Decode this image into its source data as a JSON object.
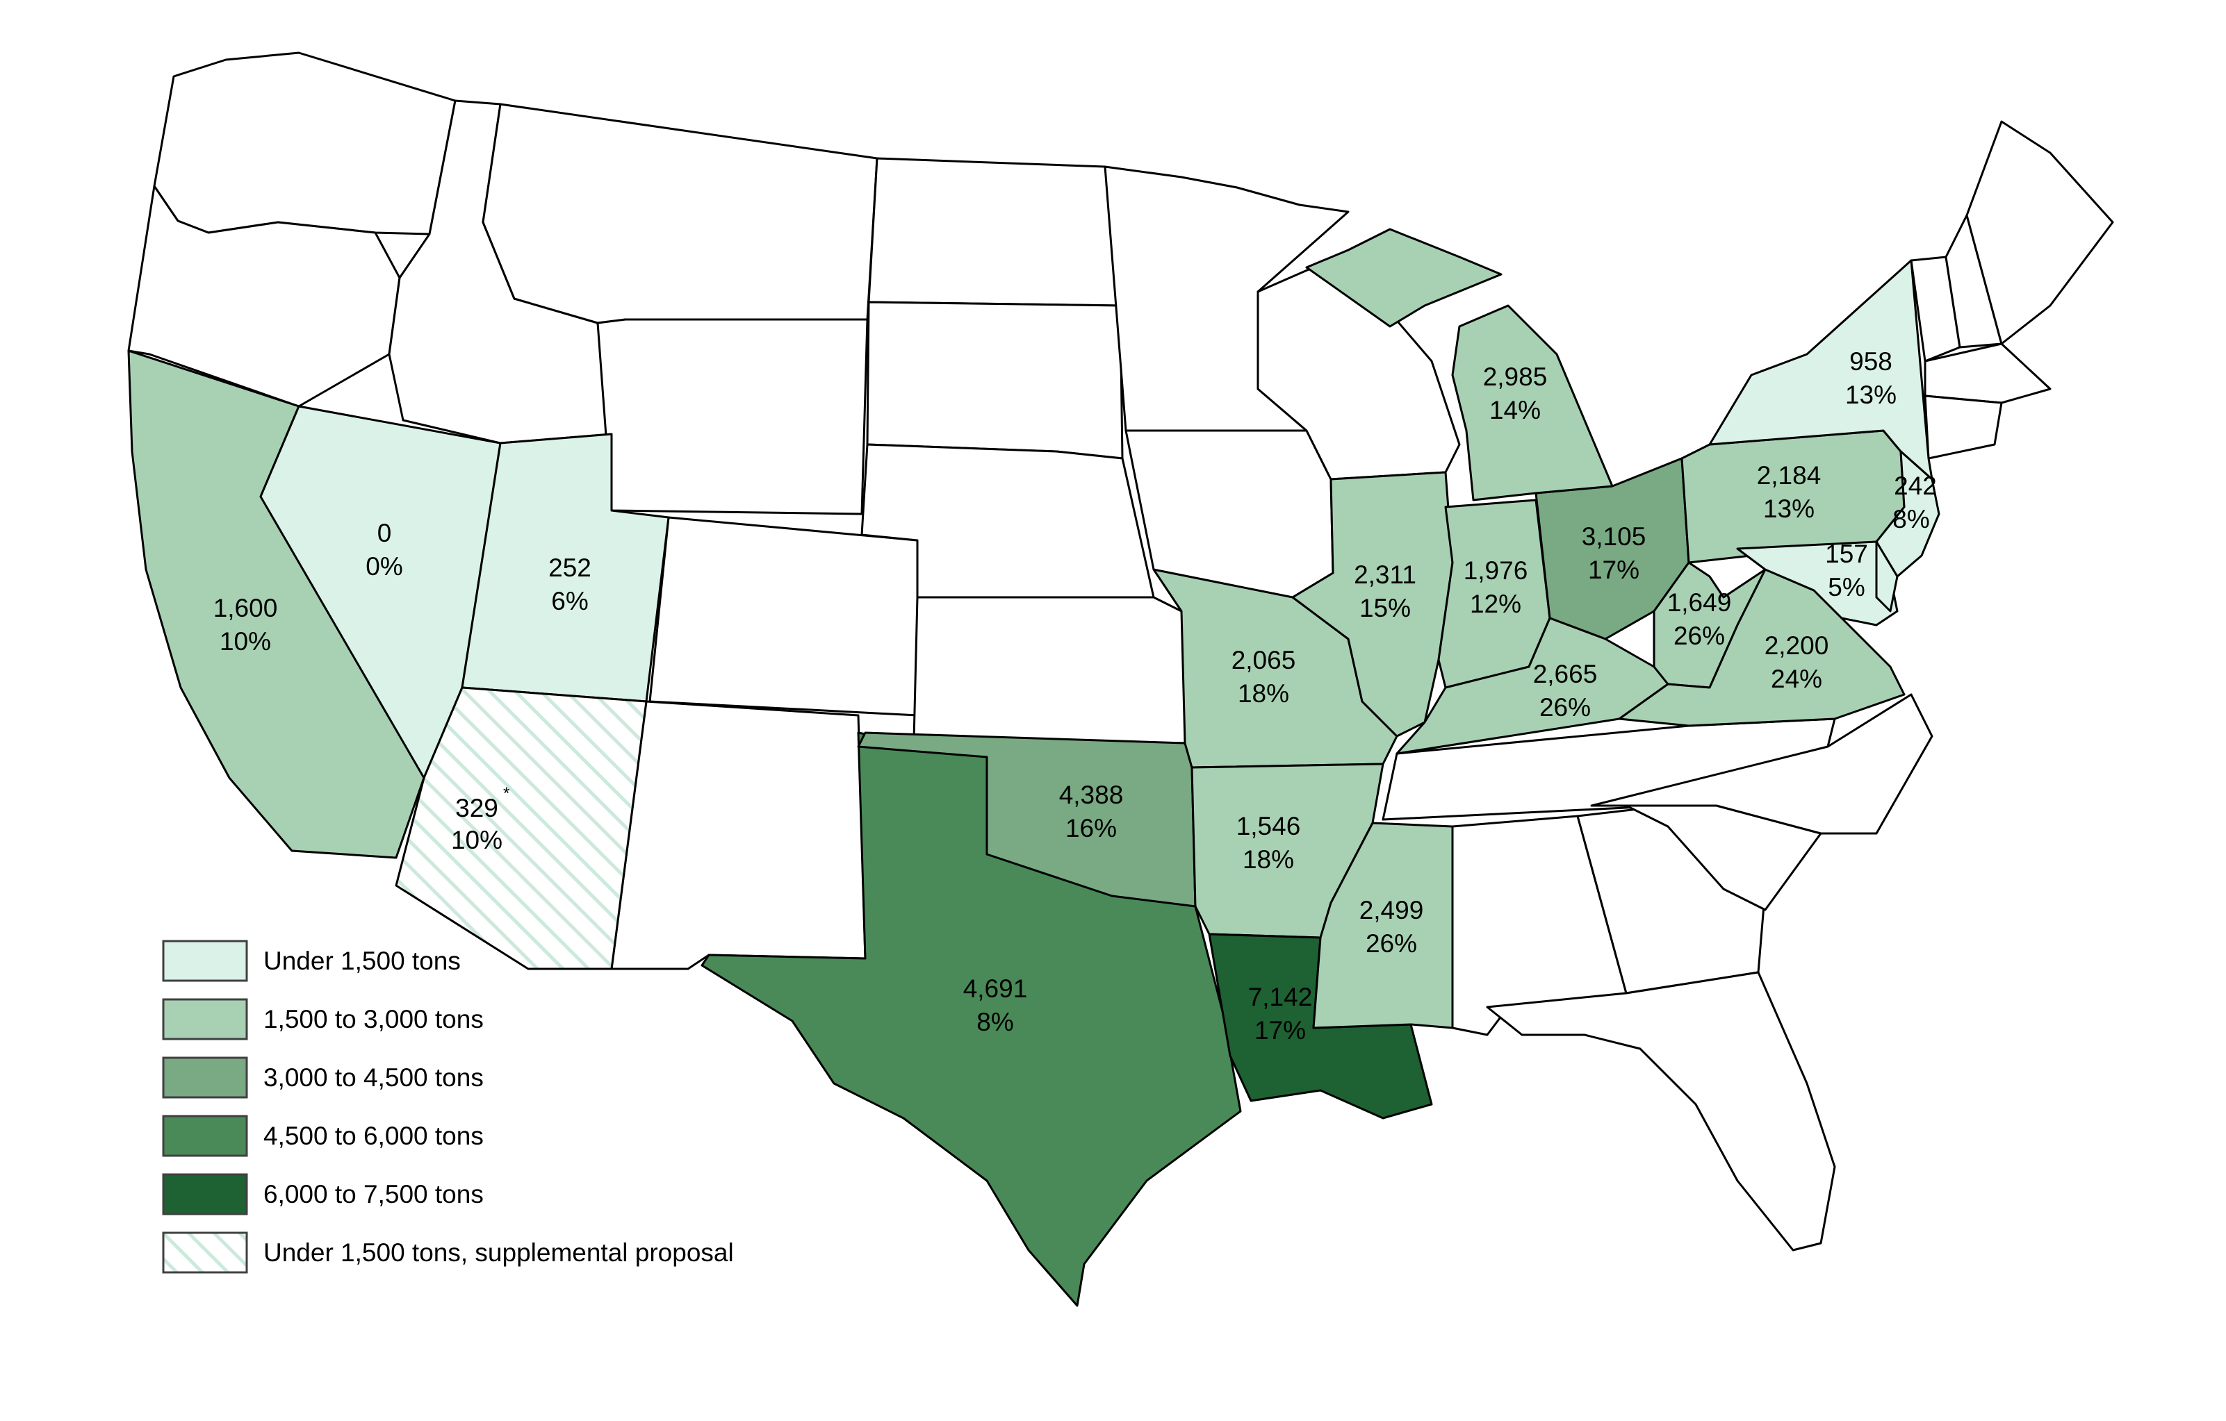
{
  "colors": {
    "bin1": "#dbf2e8",
    "bin2": "#a8d1b4",
    "bin3": "#79aa83",
    "bin4": "#4a8a58",
    "bin5": "#1e6132",
    "white": "#ffffff",
    "hatch": "#cce9dc"
  },
  "legend": [
    {
      "label": "Under 1,500 tons",
      "fill": "bin1"
    },
    {
      "label": "1,500 to 3,000 tons",
      "fill": "bin2"
    },
    {
      "label": "3,000 to 4,500 tons",
      "fill": "bin3"
    },
    {
      "label": "4,500 to 6,000 tons",
      "fill": "bin4"
    },
    {
      "label": "6,000 to 7,500 tons",
      "fill": "bin5"
    },
    {
      "label": "Under 1,500 tons, supplemental proposal",
      "fill": "hatch"
    }
  ],
  "states": {
    "CA": {
      "value": "1,600",
      "pct": "10%"
    },
    "NV": {
      "value": "0",
      "pct": "0%"
    },
    "UT": {
      "value": "252",
      "pct": "6%"
    },
    "AZ": {
      "value": "329",
      "pct": "10%",
      "note": "*"
    },
    "TX": {
      "value": "4,691",
      "pct": "8%"
    },
    "OK": {
      "value": "4,388",
      "pct": "16%"
    },
    "MO": {
      "value": "2,065",
      "pct": "18%"
    },
    "AR": {
      "value": "1,546",
      "pct": "18%"
    },
    "LA": {
      "value": "7,142",
      "pct": "17%"
    },
    "MS": {
      "value": "2,499",
      "pct": "26%"
    },
    "IL": {
      "value": "2,311",
      "pct": "15%"
    },
    "IN": {
      "value": "1,976",
      "pct": "12%"
    },
    "OH": {
      "value": "3,105",
      "pct": "17%"
    },
    "KY": {
      "value": "2,665",
      "pct": "26%"
    },
    "MI": {
      "value": "2,985",
      "pct": "14%"
    },
    "WV": {
      "value": "1,649",
      "pct": "26%"
    },
    "VA": {
      "value": "2,200",
      "pct": "24%"
    },
    "PA": {
      "value": "2,184",
      "pct": "13%"
    },
    "NY": {
      "value": "958",
      "pct": "13%"
    },
    "NJ": {
      "value": "242",
      "pct": "8%"
    },
    "MD": {
      "value": "157",
      "pct": "5%"
    }
  }
}
